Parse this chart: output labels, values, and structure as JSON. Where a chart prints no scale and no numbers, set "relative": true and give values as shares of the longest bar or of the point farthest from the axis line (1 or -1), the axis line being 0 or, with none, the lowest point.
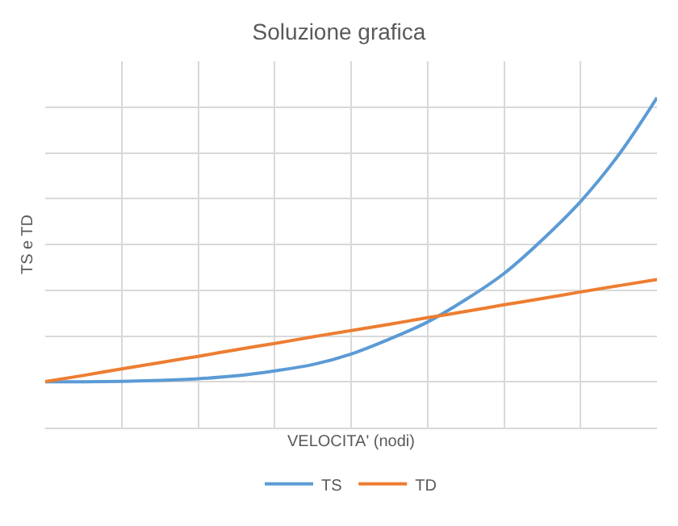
{
  "chart_data": {
    "type": "line",
    "title": "Soluzione grafica",
    "xlabel": "VELOCITA' (nodi)",
    "ylabel": "TS e TD",
    "relative": true,
    "grid": true,
    "legend": "bottom",
    "marker": "none",
    "line_style": "solid",
    "categories": [
      null,
      null,
      null,
      null,
      null,
      null,
      null,
      null,
      null,
      null,
      null,
      null,
      null,
      null,
      null,
      null,
      null
    ],
    "series": [
      {
        "name": "TS",
        "color": "#5b9bd5",
        "values": [
          0.139,
          0.139,
          0.14,
          0.143,
          0.148,
          0.157,
          0.172,
          0.191,
          0.223,
          0.268,
          0.32,
          0.388,
          0.467,
          0.569,
          0.685,
          0.827,
          1
        ]
      },
      {
        "name": "TD",
        "color": "#ed7d31",
        "values": [
          0.139,
          0.158,
          0.178,
          0.197,
          0.216,
          0.236,
          0.255,
          0.275,
          0.294,
          0.313,
          0.333,
          0.352,
          0.372,
          0.391,
          0.411,
          0.43,
          0.449
        ]
      }
    ]
  }
}
